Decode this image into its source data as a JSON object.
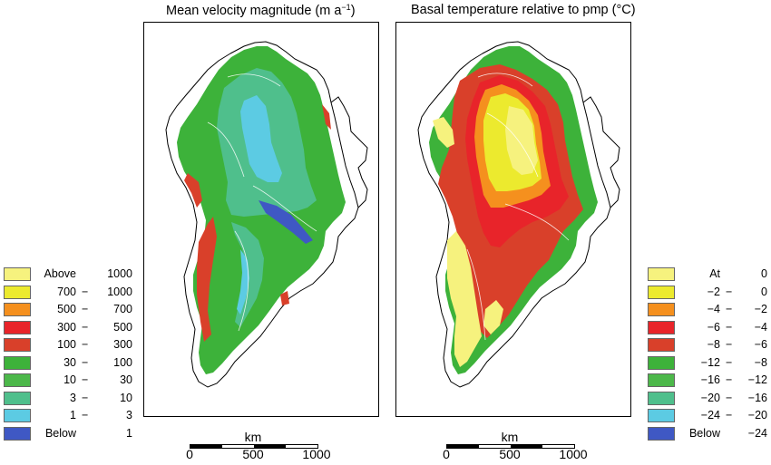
{
  "panels": [
    {
      "title_main": "Mean velocity magnitude (m a",
      "title_sup": "−1",
      "title_end": ")",
      "legend": [
        {
          "lo": "Above",
          "sep": "",
          "hi": "1000",
          "color": "#f6f27e"
        },
        {
          "lo": "700",
          "sep": "−",
          "hi": "1000",
          "color": "#ecea2e"
        },
        {
          "lo": "500",
          "sep": "−",
          "hi": "700",
          "color": "#f5901e"
        },
        {
          "lo": "300",
          "sep": "−",
          "hi": "500",
          "color": "#e8242a"
        },
        {
          "lo": "100",
          "sep": "−",
          "hi": "300",
          "color": "#d9402a"
        },
        {
          "lo": "30",
          "sep": "−",
          "hi": "100",
          "color": "#3db23a"
        },
        {
          "lo": "10",
          "sep": "−",
          "hi": "30",
          "color": "#4cb84a"
        },
        {
          "lo": "3",
          "sep": "−",
          "hi": "10",
          "color": "#4fbf8c"
        },
        {
          "lo": "1",
          "sep": "−",
          "hi": "3",
          "color": "#5ccbe3"
        },
        {
          "lo": "Below",
          "sep": "",
          "hi": "1",
          "color": "#3f58c4"
        }
      ]
    },
    {
      "title_main": "Basal temperature relative to pmp (°C)",
      "title_sup": "",
      "title_end": "",
      "legend": [
        {
          "lo": "At",
          "sep": "",
          "hi": "0",
          "color": "#f6f27e"
        },
        {
          "lo": "−2",
          "sep": "−",
          "hi": "0",
          "color": "#ecea2e"
        },
        {
          "lo": "−4",
          "sep": "−",
          "hi": "−2",
          "color": "#f5901e"
        },
        {
          "lo": "−6",
          "sep": "−",
          "hi": "−4",
          "color": "#e8242a"
        },
        {
          "lo": "−8",
          "sep": "−",
          "hi": "−6",
          "color": "#d9402a"
        },
        {
          "lo": "−12",
          "sep": "−",
          "hi": "−8",
          "color": "#3db23a"
        },
        {
          "lo": "−16",
          "sep": "−",
          "hi": "−12",
          "color": "#4cb84a"
        },
        {
          "lo": "−20",
          "sep": "−",
          "hi": "−16",
          "color": "#4fbf8c"
        },
        {
          "lo": "−24",
          "sep": "−",
          "hi": "−20",
          "color": "#5ccbe3"
        },
        {
          "lo": "Below",
          "sep": "",
          "hi": "−24",
          "color": "#3f58c4"
        }
      ]
    }
  ],
  "scalebar": {
    "unit": "km",
    "ticks": [
      "0",
      "500",
      "1000"
    ]
  }
}
